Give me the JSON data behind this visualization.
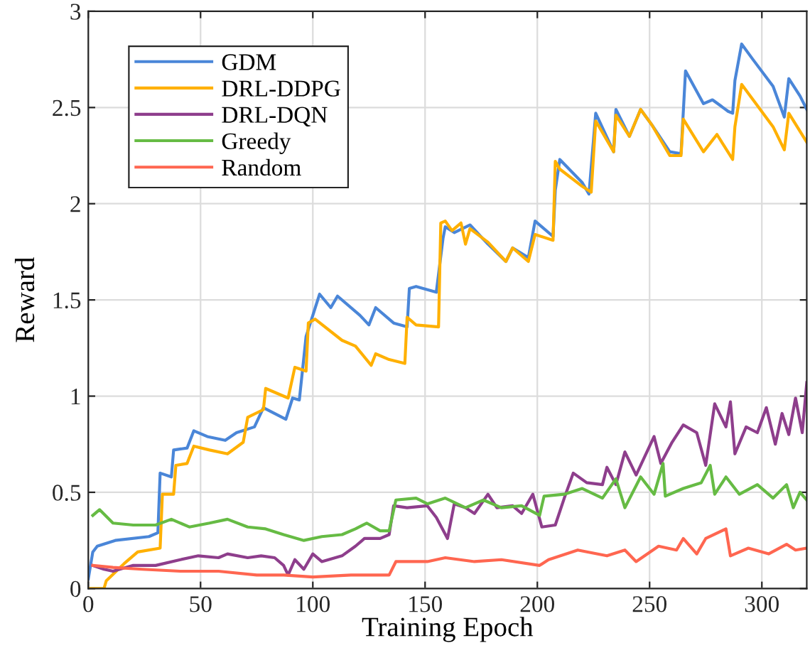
{
  "chart_data": {
    "type": "line",
    "xlabel": "Training Epoch",
    "ylabel": "Reward",
    "xlim": [
      0,
      320
    ],
    "ylim": [
      0,
      3
    ],
    "xticks": [
      0,
      50,
      100,
      150,
      200,
      250,
      300
    ],
    "yticks": [
      0,
      0.5,
      1,
      1.5,
      2,
      2.5,
      3
    ],
    "grid": true,
    "legend": "top left",
    "line_style": "solid",
    "marker": "none",
    "series": [
      {
        "name": "GDM",
        "color": "#4a86d8",
        "x": [
          0,
          2,
          4,
          12,
          27,
          31,
          32,
          37,
          38,
          44,
          47,
          53,
          61,
          66,
          74,
          78,
          88,
          91,
          94,
          97,
          103,
          108,
          111,
          121,
          125,
          128,
          136,
          142,
          143,
          146,
          155,
          158,
          159,
          163,
          170,
          178,
          186,
          189,
          196,
          199,
          207,
          208,
          210,
          220,
          223,
          226,
          234,
          235,
          241,
          246,
          251,
          259,
          264,
          266,
          274,
          278,
          285,
          287,
          288,
          291,
          296,
          305,
          310,
          312,
          317,
          320
        ],
        "values": [
          0.05,
          0.19,
          0.22,
          0.25,
          0.27,
          0.29,
          0.6,
          0.58,
          0.72,
          0.73,
          0.82,
          0.79,
          0.77,
          0.81,
          0.84,
          0.94,
          0.88,
          0.99,
          0.98,
          1.31,
          1.53,
          1.46,
          1.52,
          1.42,
          1.37,
          1.46,
          1.38,
          1.36,
          1.56,
          1.57,
          1.54,
          1.82,
          1.88,
          1.85,
          1.89,
          1.79,
          1.7,
          1.77,
          1.72,
          1.91,
          1.83,
          2.07,
          2.23,
          2.11,
          2.05,
          2.47,
          2.27,
          2.49,
          2.35,
          2.49,
          2.41,
          2.27,
          2.26,
          2.69,
          2.52,
          2.54,
          2.48,
          2.47,
          2.64,
          2.83,
          2.75,
          2.61,
          2.45,
          2.65,
          2.56,
          2.49
        ]
      },
      {
        "name": "DRL-DDPG",
        "color": "#ffb000",
        "x": [
          0,
          7,
          8,
          16,
          22,
          32,
          33,
          38,
          39,
          44,
          47,
          54,
          62,
          69,
          71,
          78,
          79,
          89,
          92,
          97,
          98,
          101,
          113,
          119,
          126,
          128,
          134,
          141,
          142,
          146,
          156,
          157,
          159,
          162,
          166,
          168,
          170,
          178,
          186,
          189,
          196,
          199,
          207,
          208,
          210,
          220,
          224,
          226,
          234,
          235,
          241,
          246,
          251,
          259,
          264,
          265,
          274,
          278,
          280,
          287,
          288,
          291,
          305,
          310,
          312,
          320
        ],
        "values": [
          0,
          0,
          0.04,
          0.13,
          0.19,
          0.21,
          0.49,
          0.49,
          0.64,
          0.65,
          0.74,
          0.72,
          0.7,
          0.76,
          0.89,
          0.93,
          1.04,
          0.99,
          1.15,
          1.13,
          1.38,
          1.4,
          1.29,
          1.26,
          1.16,
          1.22,
          1.19,
          1.17,
          1.41,
          1.37,
          1.36,
          1.9,
          1.91,
          1.86,
          1.9,
          1.79,
          1.87,
          1.8,
          1.7,
          1.77,
          1.7,
          1.84,
          1.81,
          2.22,
          2.18,
          2.09,
          2.06,
          2.43,
          2.27,
          2.46,
          2.35,
          2.49,
          2.41,
          2.25,
          2.25,
          2.44,
          2.27,
          2.33,
          2.36,
          2.23,
          2.4,
          2.62,
          2.4,
          2.28,
          2.47,
          2.32
        ]
      },
      {
        "name": "DRL-DQN",
        "color": "#8e3e8c",
        "x": [
          2,
          7,
          11,
          20,
          30,
          41,
          49,
          58,
          62,
          71,
          77,
          83,
          87,
          89,
          92,
          96,
          100,
          104,
          113,
          119,
          123,
          130,
          134,
          136,
          142,
          151,
          155,
          160,
          163,
          168,
          172,
          178,
          182,
          189,
          193,
          198,
          202,
          208,
          212,
          216,
          222,
          229,
          231,
          235,
          239,
          244,
          252,
          255,
          260,
          265,
          271,
          275,
          279,
          284,
          286,
          288,
          293,
          298,
          302,
          306,
          309,
          312,
          315,
          318,
          320
        ],
        "values": [
          0.12,
          0.1,
          0.09,
          0.12,
          0.12,
          0.15,
          0.17,
          0.16,
          0.18,
          0.16,
          0.17,
          0.16,
          0.12,
          0.07,
          0.15,
          0.1,
          0.18,
          0.14,
          0.17,
          0.22,
          0.26,
          0.26,
          0.28,
          0.43,
          0.42,
          0.43,
          0.37,
          0.26,
          0.44,
          0.42,
          0.39,
          0.49,
          0.42,
          0.43,
          0.39,
          0.49,
          0.32,
          0.33,
          0.47,
          0.6,
          0.55,
          0.54,
          0.63,
          0.54,
          0.71,
          0.59,
          0.79,
          0.65,
          0.76,
          0.85,
          0.81,
          0.64,
          0.96,
          0.84,
          0.97,
          0.7,
          0.84,
          0.81,
          0.94,
          0.75,
          0.91,
          0.8,
          0.99,
          0.81,
          1.07
        ]
      },
      {
        "name": "Greedy",
        "color": "#66bb44",
        "x": [
          2,
          5,
          11,
          20,
          30,
          37,
          45,
          54,
          62,
          71,
          79,
          87,
          96,
          104,
          113,
          119,
          124,
          130,
          134,
          137,
          146,
          151,
          159,
          168,
          176,
          184,
          193,
          201,
          203,
          212,
          220,
          229,
          235,
          239,
          246,
          252,
          256,
          257,
          265,
          273,
          277,
          279,
          284,
          290,
          298,
          305,
          311,
          314,
          317,
          320
        ],
        "values": [
          0.38,
          0.41,
          0.34,
          0.33,
          0.33,
          0.36,
          0.32,
          0.34,
          0.36,
          0.32,
          0.31,
          0.28,
          0.25,
          0.27,
          0.28,
          0.31,
          0.34,
          0.3,
          0.3,
          0.46,
          0.47,
          0.44,
          0.47,
          0.42,
          0.46,
          0.42,
          0.43,
          0.38,
          0.48,
          0.49,
          0.52,
          0.47,
          0.57,
          0.42,
          0.58,
          0.49,
          0.65,
          0.48,
          0.52,
          0.55,
          0.64,
          0.49,
          0.58,
          0.49,
          0.54,
          0.47,
          0.54,
          0.42,
          0.5,
          0.46
        ]
      },
      {
        "name": "Random",
        "color": "#ff6650",
        "x": [
          2,
          11,
          24,
          41,
          58,
          75,
          87,
          100,
          117,
          134,
          137,
          151,
          159,
          172,
          184,
          201,
          205,
          218,
          231,
          239,
          244,
          254,
          262,
          265,
          271,
          275,
          284,
          286,
          294,
          303,
          311,
          315,
          320
        ],
        "values": [
          0.12,
          0.11,
          0.1,
          0.09,
          0.09,
          0.07,
          0.07,
          0.06,
          0.07,
          0.07,
          0.14,
          0.14,
          0.16,
          0.14,
          0.15,
          0.12,
          0.15,
          0.2,
          0.17,
          0.2,
          0.14,
          0.22,
          0.2,
          0.26,
          0.18,
          0.26,
          0.31,
          0.17,
          0.21,
          0.18,
          0.23,
          0.2,
          0.21
        ]
      }
    ]
  }
}
